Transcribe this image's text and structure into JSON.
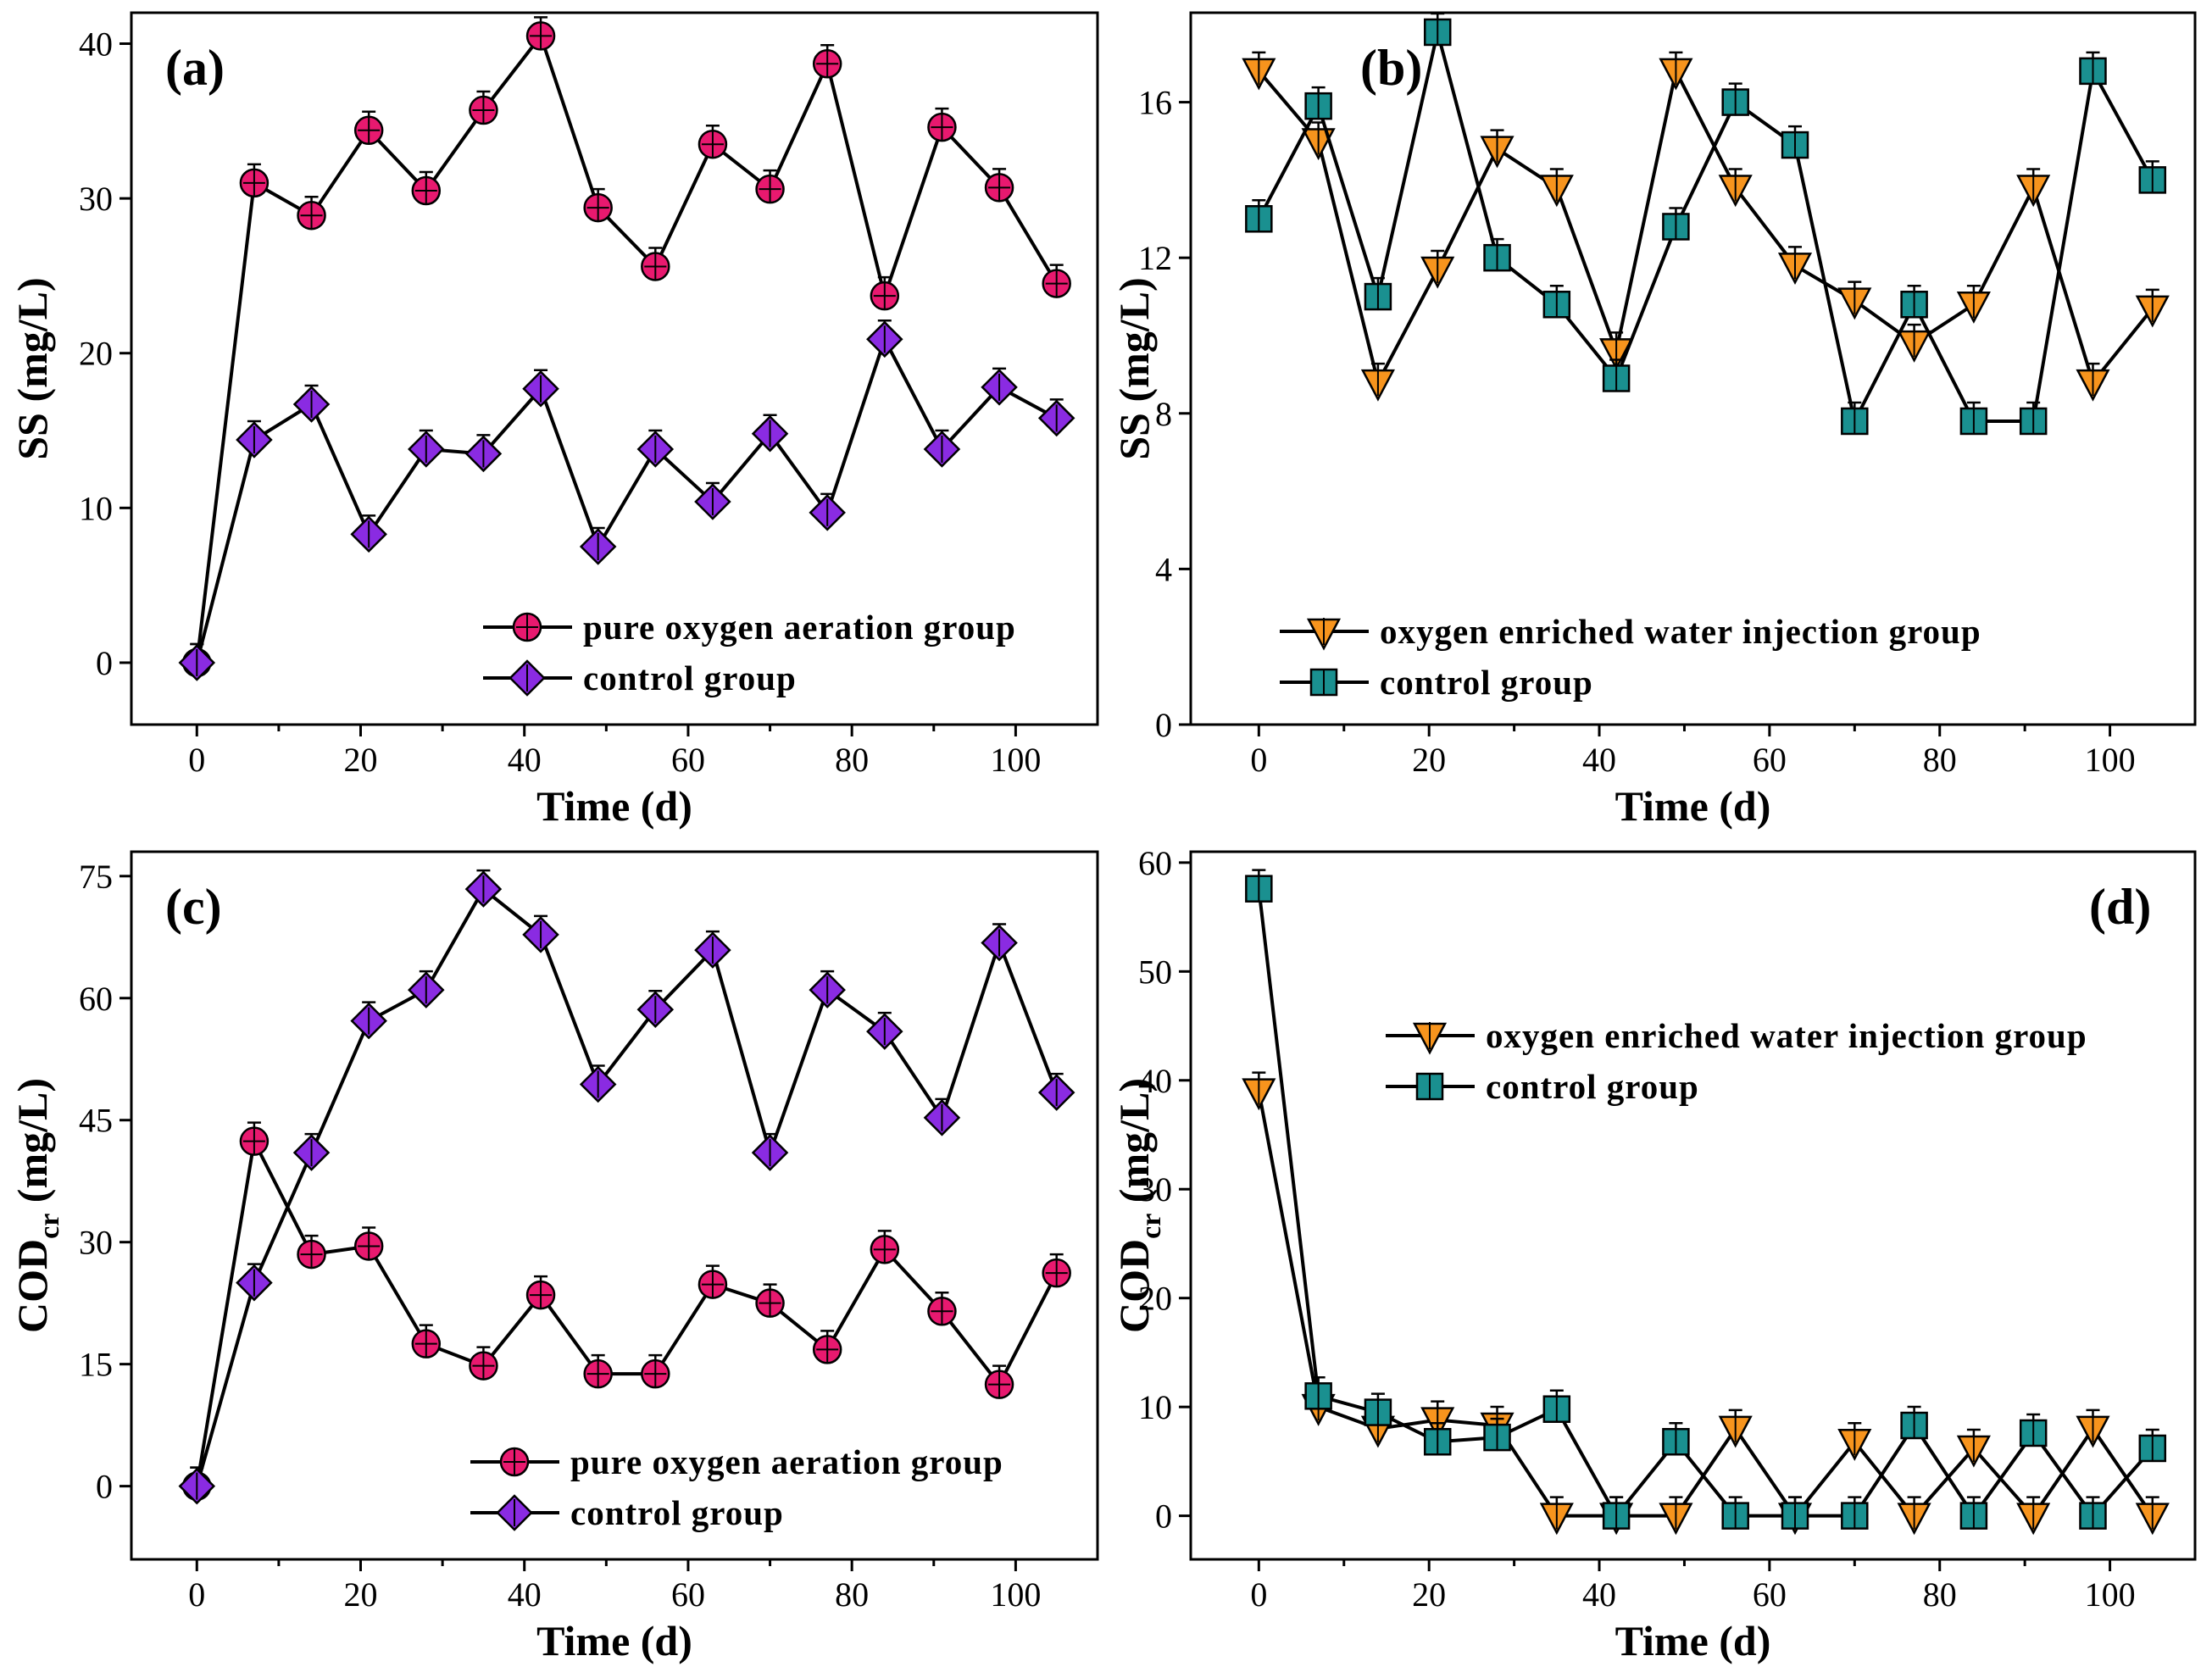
{
  "chart_data": [
    {
      "type": "line",
      "panel": "(a)",
      "xlabel": "Time (d)",
      "ylabel": "SS (mg/L)",
      "xlim": [
        -8,
        110
      ],
      "ylim": [
        -4,
        42
      ],
      "xticks": [
        0,
        20,
        40,
        60,
        80,
        100
      ],
      "yticks": [
        0,
        10,
        20,
        30,
        40
      ],
      "x": [
        0,
        7,
        14,
        21,
        28,
        35,
        42,
        49,
        56,
        63,
        70,
        77,
        84,
        91,
        98,
        105
      ],
      "series": [
        {
          "name": "pure oxygen aeration group",
          "marker": "circle",
          "color": "#e8196f",
          "values": [
            0,
            31,
            28.9,
            34.4,
            30.5,
            35.7,
            40.5,
            29.4,
            25.6,
            33.5,
            30.6,
            38.7,
            23.7,
            34.6,
            30.7,
            24.5
          ]
        },
        {
          "name": "control group",
          "marker": "diamond",
          "color": "#8a2be2",
          "values": [
            0,
            14.4,
            16.7,
            8.3,
            13.8,
            13.5,
            17.7,
            7.5,
            13.8,
            10.4,
            14.8,
            9.7,
            20.9,
            13.8,
            17.8,
            15.8
          ]
        }
      ],
      "legend_position": "bottom-right"
    },
    {
      "type": "line",
      "panel": "(b)",
      "xlabel": "Time (d)",
      "ylabel": "SS (mg/L)",
      "xlim": [
        -8,
        110
      ],
      "ylim": [
        0,
        18.3
      ],
      "xticks": [
        0,
        20,
        40,
        60,
        80,
        100
      ],
      "yticks": [
        0,
        4,
        8,
        12,
        16
      ],
      "x": [
        0,
        7,
        14,
        21,
        28,
        35,
        42,
        49,
        56,
        63,
        70,
        77,
        84,
        91,
        98,
        105
      ],
      "series": [
        {
          "name": "oxygen enriched water injection group",
          "marker": "triangle-down",
          "color": "#f7941d",
          "values": [
            16.8,
            15,
            8.8,
            11.7,
            14.8,
            13.8,
            9.6,
            16.8,
            13.8,
            11.8,
            10.9,
            9.8,
            10.8,
            13.8,
            8.8,
            10.7
          ]
        },
        {
          "name": "control group",
          "marker": "square",
          "color": "#1a9090",
          "values": [
            13,
            15.9,
            11,
            17.8,
            12,
            10.8,
            8.9,
            12.8,
            16,
            14.9,
            7.8,
            10.8,
            7.8,
            7.8,
            16.8,
            14
          ]
        }
      ],
      "legend_position": "bottom-left"
    },
    {
      "type": "line",
      "panel": "(c)",
      "xlabel": "Time (d)",
      "ylabel": "COD",
      "ylabel_subscript": "cr",
      "ylabel_units": "(mg/L)",
      "xlim": [
        -8,
        110
      ],
      "ylim": [
        -9,
        78
      ],
      "xticks": [
        0,
        20,
        40,
        60,
        80,
        100
      ],
      "yticks": [
        0,
        15,
        30,
        45,
        60,
        75
      ],
      "x": [
        0,
        7,
        14,
        21,
        28,
        35,
        42,
        49,
        56,
        63,
        70,
        77,
        84,
        91,
        98,
        105
      ],
      "series": [
        {
          "name": "pure oxygen aeration group",
          "marker": "circle",
          "color": "#e8196f",
          "values": [
            0,
            42.4,
            28.5,
            29.5,
            17.5,
            14.8,
            23.5,
            13.8,
            13.8,
            24.8,
            22.5,
            16.8,
            29.1,
            21.5,
            12.5,
            26.2
          ]
        },
        {
          "name": "control group",
          "marker": "diamond",
          "color": "#8a2be2",
          "values": [
            0,
            25,
            41,
            57.2,
            61,
            73.4,
            67.8,
            49.4,
            58.6,
            65.9,
            41,
            61,
            55.9,
            45.3,
            66.8,
            48.4
          ]
        }
      ],
      "legend_position": "bottom-right"
    },
    {
      "type": "line",
      "panel": "(d)",
      "xlabel": "Time (d)",
      "ylabel": "COD",
      "ylabel_subscript": "cr",
      "ylabel_units": "(mg/L)",
      "xlim": [
        -8,
        110
      ],
      "ylim": [
        -4,
        61
      ],
      "xticks": [
        0,
        20,
        40,
        60,
        80,
        100
      ],
      "yticks": [
        0,
        10,
        20,
        30,
        40,
        50,
        60
      ],
      "x": [
        0,
        7,
        14,
        21,
        28,
        35,
        42,
        49,
        56,
        63,
        70,
        77,
        84,
        91,
        98,
        105
      ],
      "series": [
        {
          "name": "oxygen enriched water injection group",
          "marker": "triangle-down",
          "color": "#f7941d",
          "values": [
            39,
            10,
            8,
            8.8,
            8.3,
            0,
            0,
            0,
            8,
            0,
            6.8,
            0,
            6.2,
            0,
            8,
            0
          ]
        },
        {
          "name": "control group",
          "marker": "square",
          "color": "#1a9090",
          "values": [
            57.6,
            11,
            9.5,
            6.8,
            7.2,
            9.8,
            0,
            6.8,
            0,
            0,
            0,
            8.3,
            0,
            7.6,
            0,
            6.2
          ]
        }
      ],
      "legend_position": "top-right"
    }
  ]
}
